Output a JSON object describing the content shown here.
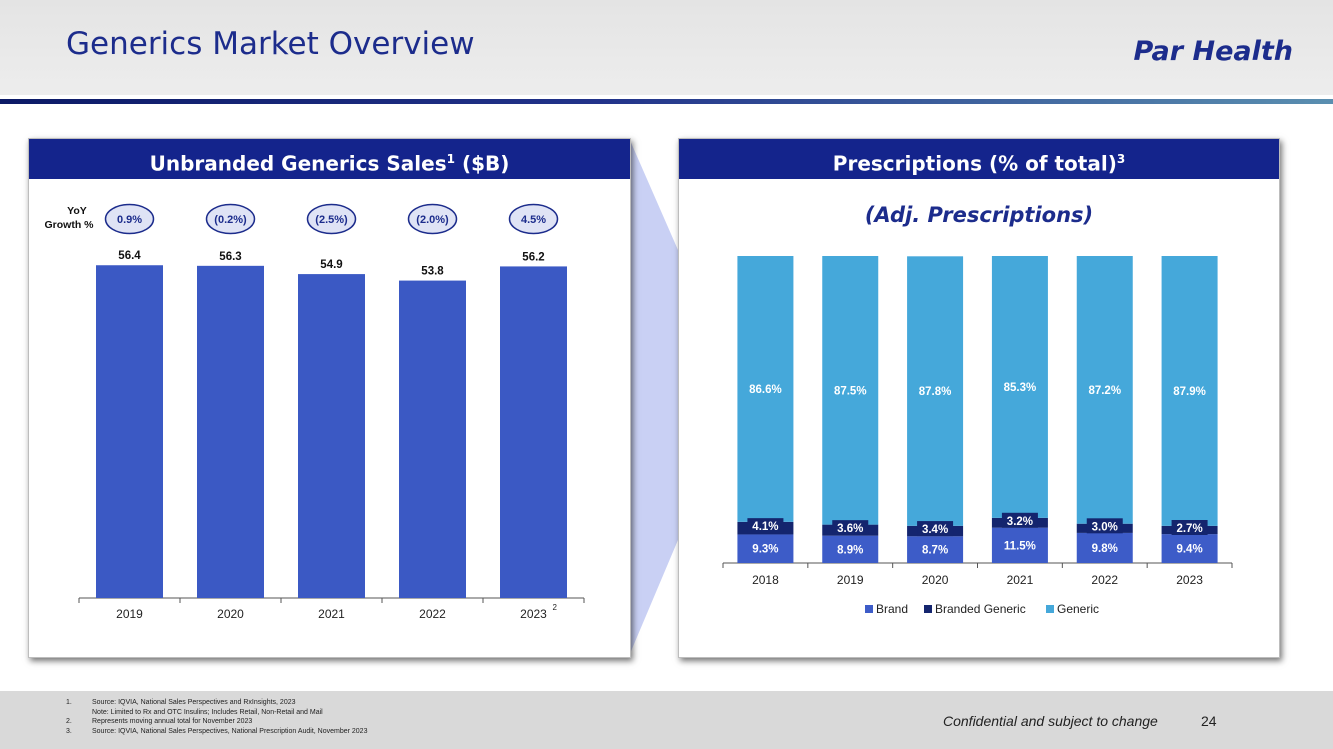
{
  "slide": {
    "title": "Generics Market Overview",
    "brand": "Par Health",
    "confidential": "Confidential and subject to change",
    "page_number": "24"
  },
  "left_panel": {
    "title": "Unbranded Generics Sales",
    "title_sup": "1",
    "title_suffix": " ($B)",
    "yoy_label_line1": "YoY",
    "yoy_label_line2": "Growth %"
  },
  "right_panel": {
    "title": "Prescriptions (% of total)",
    "title_sup": "3",
    "subtitle": "(Adj. Prescriptions)"
  },
  "footnotes": [
    {
      "num": "1.",
      "text": "Source: IQVIA, National Sales Perspectives and RxInsights, 2023"
    },
    {
      "num": "",
      "text": "Note: Limited to Rx and OTC Insulins; Includes Retail, Non-Retail and Mail"
    },
    {
      "num": "2.",
      "text": "Represents moving annual total for November 2023"
    },
    {
      "num": "3.",
      "text": "Source: IQVIA, National Sales Perspectives, National Prescription Audit, November 2023"
    }
  ],
  "chart_data": [
    {
      "type": "bar",
      "title": "Unbranded Generics Sales ($B)",
      "categories": [
        "2019",
        "2020",
        "2021",
        "2022",
        "2023"
      ],
      "category_sup": [
        "",
        "",
        "",
        "",
        "2"
      ],
      "values": [
        56.4,
        56.3,
        54.9,
        53.8,
        56.2
      ],
      "value_labels": [
        "56.4",
        "56.3",
        "54.9",
        "53.8",
        "56.2"
      ],
      "yoy_growth": [
        "0.9%",
        "(0.2%)",
        "(2.5%)",
        "(2.0%)",
        "4.5%"
      ],
      "ylim": [
        0,
        60
      ],
      "color": "#3b59c4",
      "xlabel": "",
      "ylabel": ""
    },
    {
      "type": "bar",
      "stacked": true,
      "title": "Prescriptions (% of total)",
      "subtitle": "(Adj. Prescriptions)",
      "categories": [
        "2018",
        "2019",
        "2020",
        "2021",
        "2022",
        "2023"
      ],
      "series": [
        {
          "name": "Brand",
          "color": "#3d5cc8",
          "values": [
            9.3,
            8.9,
            8.7,
            11.5,
            9.8,
            9.4
          ],
          "labels": [
            "9.3%",
            "8.9%",
            "8.7%",
            "11.5%",
            "9.8%",
            "9.4%"
          ]
        },
        {
          "name": "Branded Generic",
          "color": "#14256e",
          "values": [
            4.1,
            3.6,
            3.4,
            3.2,
            3.0,
            2.7
          ],
          "labels": [
            "4.1%",
            "3.6%",
            "3.4%",
            "3.2%",
            "3.0%",
            "2.7%"
          ]
        },
        {
          "name": "Generic",
          "color": "#45a8da",
          "values": [
            86.6,
            87.5,
            87.8,
            85.3,
            87.2,
            87.9
          ],
          "labels": [
            "86.6%",
            "87.5%",
            "87.8%",
            "85.3%",
            "87.2%",
            "87.9%"
          ]
        }
      ],
      "ylim": [
        0,
        100
      ],
      "legend": "bottom"
    }
  ]
}
